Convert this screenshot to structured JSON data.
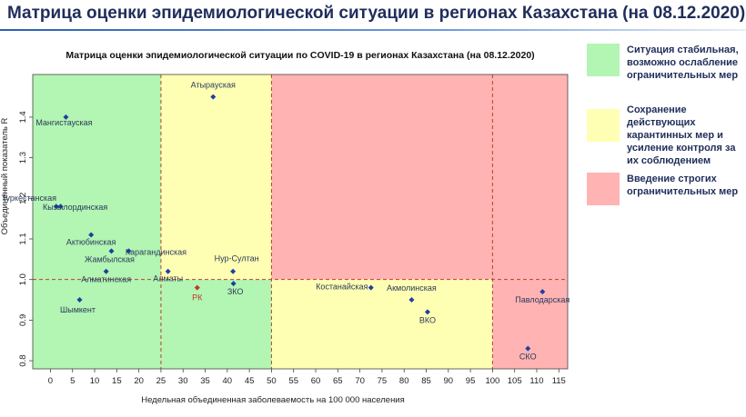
{
  "page_title": "Матрица оценки эпидемиологической ситуации в регионах Казахстана (на 08.12.2020)",
  "legend": [
    {
      "text": "Ситуация стабильная, возможно ослабление ограничительных мер",
      "color": "#b3f5b3"
    },
    {
      "text": "Сохранение действующих карантинных мер и усиление контроля за их соблюдением",
      "color": "#ffffb3"
    },
    {
      "text": "Введение строгих ограничительных мер",
      "color": "#ffb3b3"
    }
  ],
  "chart_data": {
    "type": "scatter",
    "title": "Матрица оценки эпидемиологической ситуации по COVID-19 в регионах Казахстана (на 08.12.2020)",
    "xlabel": "Недельная объединенная заболеваемость на 100 000 населения",
    "ylabel": "Объединенный показатель R",
    "xlim": [
      -4,
      117
    ],
    "ylim": [
      0.78,
      1.505
    ],
    "x_ticks": [
      0,
      5,
      10,
      15,
      20,
      25,
      30,
      35,
      40,
      45,
      50,
      55,
      60,
      65,
      70,
      75,
      80,
      85,
      90,
      95,
      100,
      105,
      110,
      115
    ],
    "y_ticks": [
      0.8,
      0.9,
      1.0,
      1.1,
      1.2,
      1.3,
      1.4
    ],
    "y_tick_labels": [
      "0.8",
      "0.9",
      "1.0",
      "1.1",
      "1.2",
      "1.3",
      "1.4"
    ],
    "threshold_x": [
      25,
      50,
      100
    ],
    "threshold_y": 1.0,
    "zones": [
      {
        "x": [
          -4,
          25
        ],
        "y": [
          0.78,
          1.505
        ],
        "color": "#b3f5b3"
      },
      {
        "x": [
          25,
          50
        ],
        "y": [
          1.0,
          1.505
        ],
        "color": "#ffffb3"
      },
      {
        "x": [
          25,
          50
        ],
        "y": [
          0.78,
          1.0
        ],
        "color": "#b3f5b3"
      },
      {
        "x": [
          50,
          117
        ],
        "y": [
          1.0,
          1.505
        ],
        "color": "#ffb3b3"
      },
      {
        "x": [
          50,
          100
        ],
        "y": [
          0.78,
          1.0
        ],
        "color": "#ffffb3"
      },
      {
        "x": [
          100,
          117
        ],
        "y": [
          0.78,
          1.0
        ],
        "color": "#ffb3b3"
      }
    ],
    "point_color": "#1f3fa0",
    "highlight_color": "#c0392b",
    "points": [
      {
        "label": "Атырауская",
        "x": 36.8,
        "y": 1.45
      },
      {
        "label": "Мангистауская",
        "x": 3.5,
        "y": 1.4
      },
      {
        "label": "Туркестанская",
        "x": 1.3,
        "y": 1.18
      },
      {
        "label": "Кызылординская",
        "x": 2.3,
        "y": 1.18
      },
      {
        "label": "Актюбинская",
        "x": 9.2,
        "y": 1.11
      },
      {
        "label": "Карагандинская",
        "x": 17.7,
        "y": 1.07
      },
      {
        "label": "Жамбылская",
        "x": 13.8,
        "y": 1.07
      },
      {
        "label": "Нур-Султан",
        "x": 41.3,
        "y": 1.02
      },
      {
        "label": "Алматинская",
        "x": 12.6,
        "y": 1.02
      },
      {
        "label": "Алматы",
        "x": 26.6,
        "y": 1.02
      },
      {
        "label": "ЗКО",
        "x": 41.4,
        "y": 0.99
      },
      {
        "label": "РК",
        "x": 33.2,
        "y": 0.98,
        "highlight": true
      },
      {
        "label": "Шымкент",
        "x": 6.6,
        "y": 0.95
      },
      {
        "label": "Костанайская",
        "x": 72.5,
        "y": 0.98
      },
      {
        "label": "Акмолинская",
        "x": 81.7,
        "y": 0.95
      },
      {
        "label": "ВКО",
        "x": 85.3,
        "y": 0.92
      },
      {
        "label": "Павлодарская",
        "x": 111.3,
        "y": 0.97
      },
      {
        "label": "СКО",
        "x": 108.0,
        "y": 0.83
      }
    ]
  }
}
